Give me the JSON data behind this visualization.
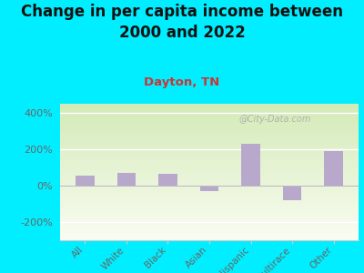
{
  "title": "Change in per capita income between\n2000 and 2022",
  "subtitle": "Dayton, TN",
  "categories": [
    "All",
    "White",
    "Black",
    "Asian",
    "Hispanic",
    "Multirace",
    "Other"
  ],
  "values": [
    55,
    70,
    65,
    -30,
    230,
    -80,
    190
  ],
  "bar_color": "#b8a9cc",
  "title_fontsize": 12,
  "subtitle_fontsize": 9.5,
  "subtitle_color": "#cc3333",
  "tick_label_color": "#666666",
  "ytick_label_color": "#666666",
  "bg_outer": "#00eeff",
  "bg_chart_top": "#f0f8e8",
  "bg_chart_bottom": "#d4ebb8",
  "ylim": [
    -300,
    450
  ],
  "yticks": [
    -200,
    0,
    200,
    400
  ],
  "ytick_labels": [
    "-200%",
    "0%",
    "200%",
    "400%"
  ],
  "watermark": "@City-Data.com"
}
